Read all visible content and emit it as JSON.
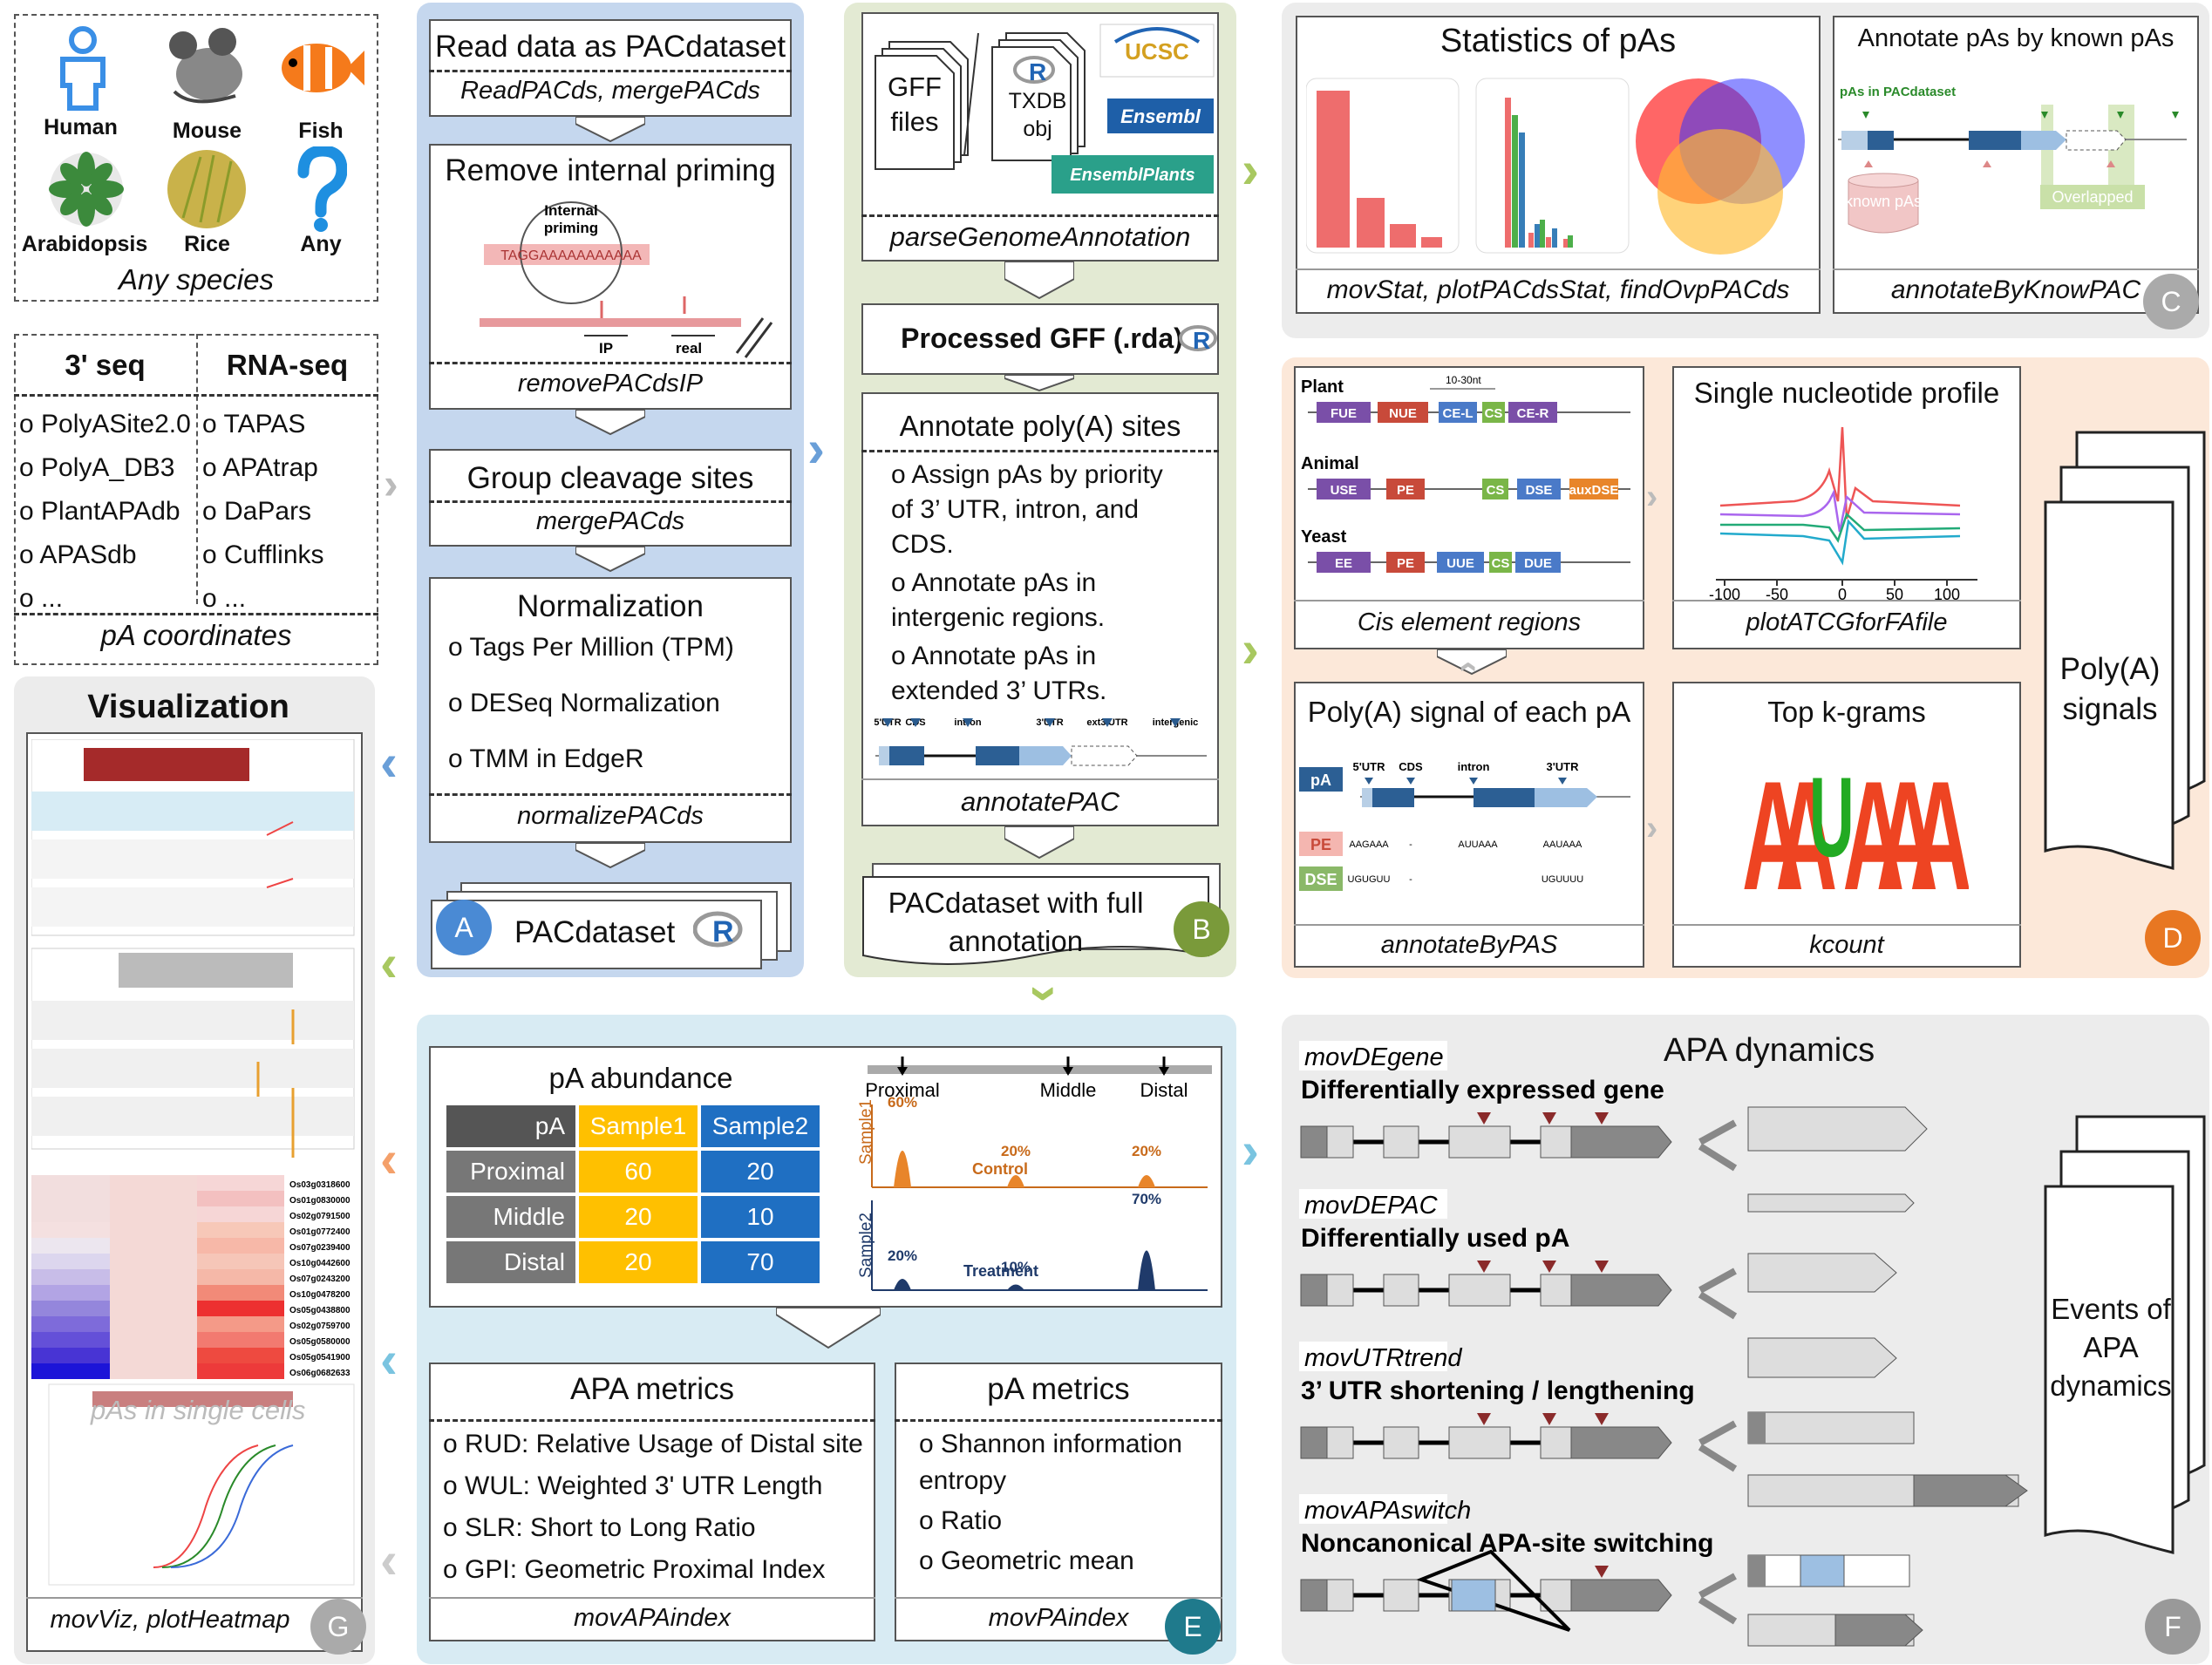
{
  "species": {
    "items": [
      {
        "name": "Human",
        "color": "#3a8fe6"
      },
      {
        "name": "Mouse",
        "color": "#555"
      },
      {
        "name": "Fish",
        "color": "#f57a1b"
      },
      {
        "name": "Arabidopsis",
        "color": "#3c8a3c"
      },
      {
        "name": "Rice",
        "color": "#c8a23c"
      },
      {
        "name": "Any",
        "color": "#1e8fe0"
      }
    ],
    "caption": "Any species"
  },
  "sources": {
    "col1_title": "3' seq",
    "col2_title": "RNA-seq",
    "col1": [
      "PolyASite2.0",
      "PolyA_DB3",
      "PlantAPAdb",
      "APASdb",
      "..."
    ],
    "col2": [
      "TAPAS",
      "APAtrap",
      " DaPars",
      "Cufflinks",
      "..."
    ],
    "caption": "pA coordinates"
  },
  "panelA": {
    "letter": "A",
    "read_title": "Read data as PACdataset",
    "read_fn": "ReadPACds, mergePACds",
    "ip_title": "Remove internal  priming",
    "ip_inner1": "Internal",
    "ip_inner2": "priming",
    "ip_seq": "TAGGAAAAAAAAAAA",
    "ip_ip": "IP",
    "ip_real": "real",
    "ip_fn": "removePACdsIP",
    "group_title": "Group cleavage sites",
    "group_fn": "mergePACds",
    "norm_title": "Normalization",
    "norm_items": [
      "Tags Per Million (TPM)",
      "DESeq Normalization",
      "TMM in EdgeR"
    ],
    "norm_fn": "normalizePACds",
    "out": "PACdataset"
  },
  "panelB": {
    "letter": "B",
    "gff": "GFF files",
    "txdb": "TXDB obj",
    "logos": [
      "UCSC",
      "Ensembl",
      "EnsemblPlants"
    ],
    "parse_fn": "parseGenomeAnnotation",
    "processed": "Processed GFF (.rda)",
    "annot_title": "Annotate poly(A) sites",
    "annot_items": [
      "Assign pAs by priority of 3’ UTR, intron, and CDS.",
      "Annotate pAs in intergenic regions.",
      "Annotate pAs in extended 3’ UTRs."
    ],
    "gene_labels": [
      "5'UTR",
      "CDS",
      "intron",
      "3'UTR",
      "ext3'UTR",
      "intergenic"
    ],
    "annot_fn": "annotatePAC",
    "out": "PACdataset with full annotation"
  },
  "panelC": {
    "letter": "C",
    "stat_title": "Statistics of pAs",
    "stat_fn": "movStat, plotPACdsStat, findOvpPACds",
    "known_title": "Annotate pAs by known pAs",
    "known_label": "pAs in PACdataset",
    "known_pas": "known pAs",
    "overlapped": "Overlapped",
    "known_fn": "annotateByKnowPAC"
  },
  "panelD": {
    "letter": "D",
    "cis_species": [
      "Plant",
      "Animal",
      "Yeast"
    ],
    "cis_plant": [
      "FUE",
      "NUE",
      "CE-L",
      "CS",
      "CE-R"
    ],
    "cis_animal": [
      "USE",
      "PE",
      "CS",
      "DSE",
      "auxDSE"
    ],
    "cis_yeast": [
      "EE",
      "PE",
      "UUE",
      "CS",
      "DUE"
    ],
    "cis_dist": "10-30nt",
    "cis_fn": "Cis element regions",
    "snp_title": "Single nucleotide profile",
    "snp_ticks": [
      "-100",
      "-50",
      "0",
      "50",
      "100"
    ],
    "snp_fn": "plotATCGforFAfile",
    "pas_title": "Poly(A) signal of each pA",
    "pas_tags": [
      "pA",
      "PE",
      "DSE"
    ],
    "pas_gene": [
      "5'UTR",
      "CDS",
      "intron",
      "3'UTR"
    ],
    "pas_pe": [
      "AAGAAA",
      "-",
      "AUUAAA",
      "AAUAAA"
    ],
    "pas_dse": [
      "UGUGUU",
      "-",
      "UGUUUU"
    ],
    "pas_fn": "annotateByPAS",
    "kgram_title": "Top k-grams",
    "kgram_fn": "kcount",
    "stack": "Poly(A) signals"
  },
  "panelE": {
    "letter": "E",
    "abund_title": "pA abundance",
    "table_header": [
      "pA",
      "Sample1",
      "Sample2"
    ],
    "table_rows": [
      [
        "Proximal",
        "60",
        "20"
      ],
      [
        "Middle",
        "20",
        "10"
      ],
      [
        "Distal",
        "20",
        "70"
      ]
    ],
    "sites": [
      "Proximal",
      "Middle",
      "Distal"
    ],
    "s1": "Sample1",
    "s2": "Sample2",
    "control": "Control",
    "treatment": "Treatment",
    "ctrl_pct": [
      "60%",
      "20%",
      "20%"
    ],
    "trt_pct": [
      "20%",
      "10%",
      "70%"
    ],
    "apa_title": "APA metrics",
    "apa_items": [
      "RUD: Relative Usage of Distal site",
      "WUL: Weighted 3' UTR Length",
      "SLR: Short to Long Ratio",
      "GPI: Geometric Proximal Index"
    ],
    "apa_fn": "movAPAindex",
    "pam_title": "pA metrics",
    "pam_items": [
      "Shannon information entropy",
      "Ratio",
      "Geometric mean"
    ],
    "pam_fn": "movPAindex"
  },
  "panelF": {
    "letter": "F",
    "title": "APA dynamics",
    "rows": [
      {
        "fn": "movDEgene",
        "desc": "Differentially expressed gene"
      },
      {
        "fn": "movDEPAC",
        "desc": "Differentially used pA"
      },
      {
        "fn": "movUTRtrend",
        "desc": "3’ UTR shortening / lengthening"
      },
      {
        "fn": "movAPAswitch",
        "desc": "Noncanonical APA-site switching"
      }
    ],
    "stack": "Events of APA dynamics"
  },
  "panelG": {
    "letter": "G",
    "title": "Visualization",
    "heat_genes": [
      "Os03g0318600",
      "Os01g0830000",
      "Os02g0791500",
      "Os01g0772400",
      "Os07g0239400",
      "Os10g0442600",
      "Os07g0243200",
      "Os10g0478200",
      "Os05g0438800",
      "Os02g0759700",
      "Os05g0580000",
      "Os05g0541900",
      "Os06g0682633"
    ],
    "sc_label": "pAs in single cells",
    "fn": "movViz, plotHeatmap"
  },
  "colors": {
    "A": "#c5d7ee",
    "B": "#e3ead3",
    "C": "#ececec",
    "D": "#fce8d9",
    "E": "#d8ebf3",
    "F": "#ececec",
    "G": "#ececec"
  }
}
